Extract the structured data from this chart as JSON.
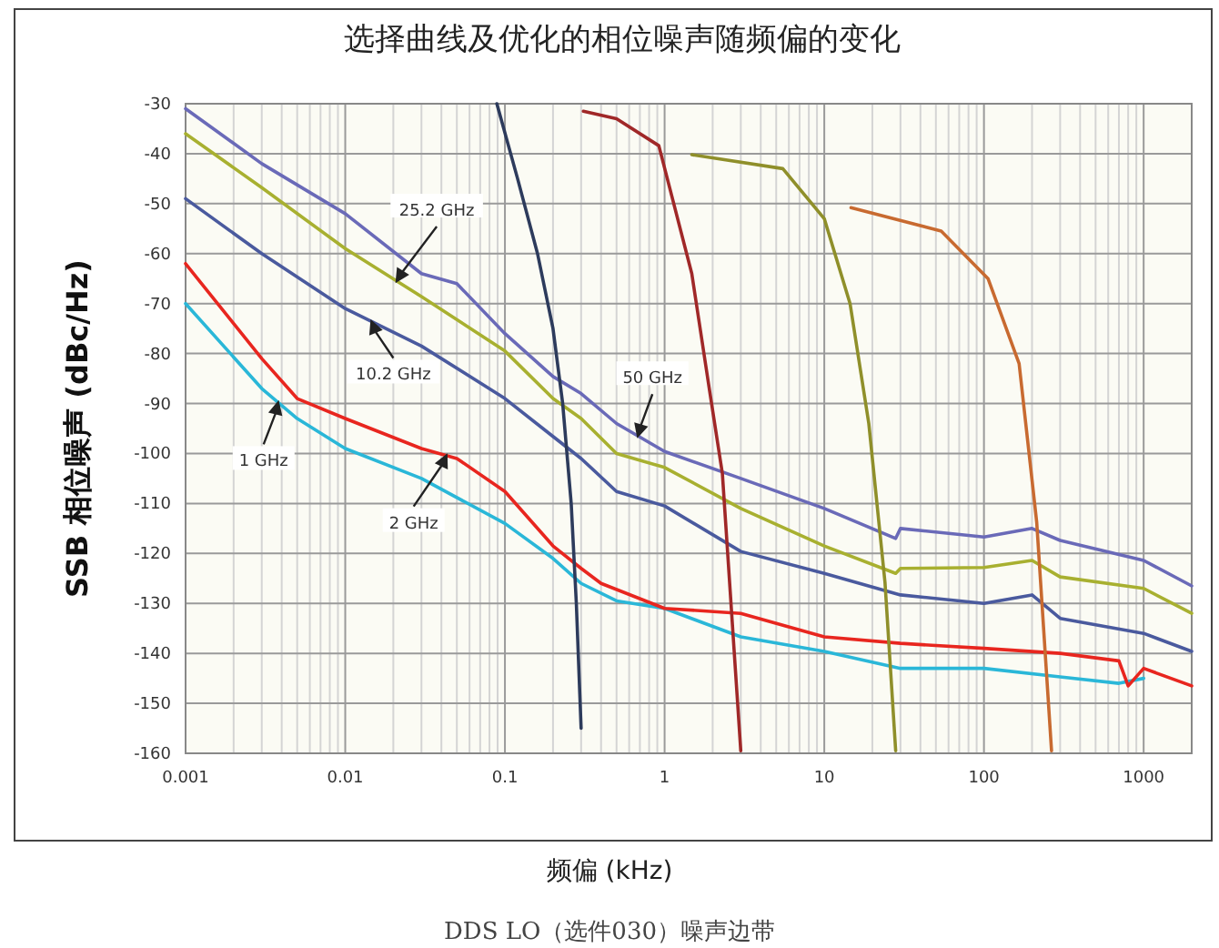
{
  "chart_data": {
    "type": "line",
    "title": "选择曲线及优化的相位噪声随频偏的变化",
    "xlabel": "频偏 (kHz)",
    "ylabel": "SSB 相位噪声 (dBc/Hz)",
    "log": "x",
    "grid": true,
    "xlim": [
      0.001,
      2000
    ],
    "ylim": [
      -160,
      -30
    ],
    "xticks": [
      0.001,
      0.01,
      0.1,
      1,
      10,
      100,
      1000
    ],
    "yticks": [
      -30,
      -40,
      -50,
      -60,
      -70,
      -80,
      -90,
      -100,
      -110,
      -120,
      -130,
      -140,
      -150,
      -160
    ],
    "series": [
      {
        "color": "#2ab7d8",
        "x": [
          0.001,
          0.003,
          0.005,
          0.01,
          0.03,
          0.1,
          0.2,
          0.3,
          0.5,
          1,
          3,
          10,
          30,
          100,
          300,
          700,
          1000
        ],
        "values": [
          -70,
          -87,
          -93,
          -99,
          -105,
          -114,
          -121,
          -126,
          -129.5,
          -131,
          -136.7,
          -139.6,
          -143,
          -143,
          -144.7,
          -146,
          -145
        ]
      },
      {
        "color": "#e8261f",
        "x": [
          0.001,
          0.003,
          0.005,
          0.01,
          0.03,
          0.05,
          0.1,
          0.2,
          0.3,
          0.4,
          1,
          3,
          10,
          30,
          100,
          300,
          700,
          800,
          1000,
          2000
        ],
        "values": [
          -62,
          -81,
          -89,
          -93,
          -99,
          -101,
          -107.6,
          -118.5,
          -123,
          -126,
          -131,
          -132,
          -136.7,
          -138,
          -139,
          -140,
          -141.5,
          -146.5,
          -143,
          -146.5
        ]
      },
      {
        "color": "#4a5a9e",
        "x": [
          0.001,
          0.003,
          0.01,
          0.03,
          0.1,
          0.2,
          0.3,
          0.5,
          1,
          3,
          10,
          30,
          100,
          200,
          300,
          1000,
          2000
        ],
        "values": [
          -49,
          -60,
          -71,
          -78.5,
          -89,
          -96.6,
          -101,
          -107.6,
          -110.5,
          -119.6,
          -124,
          -128.3,
          -130,
          -128.3,
          -133,
          -136,
          -139.6
        ]
      },
      {
        "color": "#a8b030",
        "x": [
          0.001,
          0.003,
          0.01,
          0.03,
          0.1,
          0.2,
          0.3,
          0.5,
          1,
          3,
          10,
          28,
          30,
          100,
          200,
          300,
          1000,
          2000
        ],
        "values": [
          -36,
          -46.8,
          -59,
          -68.6,
          -79.5,
          -89,
          -93,
          -100,
          -102.8,
          -111,
          -118.5,
          -124,
          -123,
          -122.8,
          -121.4,
          -124.7,
          -127,
          -132
        ]
      },
      {
        "color": "#6a6ab8",
        "x": [
          0.001,
          0.003,
          0.01,
          0.03,
          0.05,
          0.1,
          0.2,
          0.3,
          0.5,
          1,
          3,
          10,
          28,
          30,
          100,
          200,
          300,
          1000,
          2000
        ],
        "values": [
          -31,
          -42,
          -52,
          -64,
          -66,
          -76,
          -84.6,
          -88,
          -94,
          -99.6,
          -105,
          -111,
          -117,
          -115,
          -116.7,
          -115,
          -117.4,
          -121.4,
          -126.5
        ]
      },
      {
        "color": "#2d3b5c",
        "x": [
          0.089,
          0.12,
          0.16,
          0.2,
          0.23,
          0.26,
          0.28,
          0.3
        ],
        "values": [
          -30,
          -45,
          -60,
          -75,
          -90,
          -110,
          -130,
          -155
        ]
      },
      {
        "color": "#a02828",
        "x": [
          0.31,
          0.5,
          0.92,
          1.48,
          1.9,
          2.3,
          3.0
        ],
        "values": [
          -31.5,
          -33,
          -38.4,
          -64,
          -86.8,
          -104,
          -159.5
        ]
      },
      {
        "color": "#8f8f2a",
        "x": [
          1.48,
          5.5,
          10,
          14.5,
          19,
          24,
          28
        ],
        "values": [
          -40.2,
          -43,
          -53,
          -70,
          -94,
          -125.8,
          -159.5
        ]
      },
      {
        "color": "#c86a30",
        "x": [
          14.7,
          54,
          106,
          166,
          214,
          265
        ],
        "values": [
          -50.8,
          -55.5,
          -65,
          -82,
          -113.8,
          -159.5
        ]
      }
    ],
    "annotations": [
      {
        "text": "25.2 GHz",
        "x": 0.021,
        "y": -65.5
      },
      {
        "text": "10.2 GHz",
        "x": 0.0146,
        "y": -73.6
      },
      {
        "text": "50 GHz",
        "x": 0.68,
        "y": -96.5
      },
      {
        "text": "1 GHz",
        "x": 0.0038,
        "y": -89.8
      },
      {
        "text": "2 GHz",
        "x": 0.043,
        "y": -100.4
      },
      "DDS LO（选件030）噪声边带"
    ]
  }
}
